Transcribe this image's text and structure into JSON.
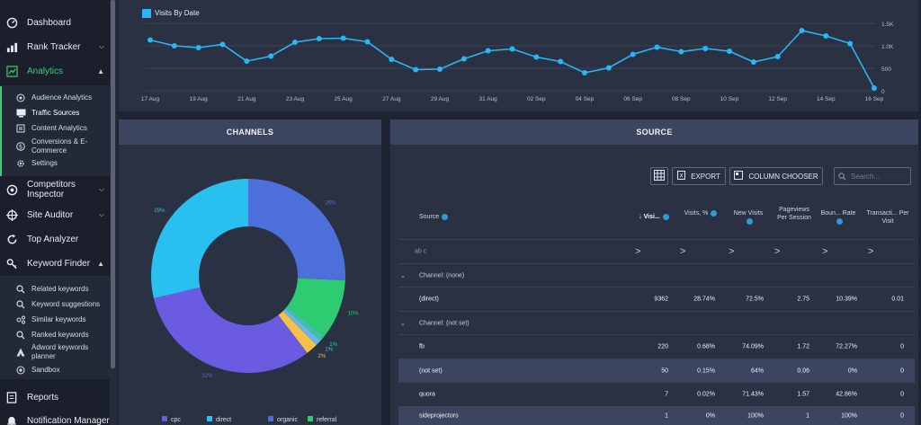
{
  "sidebar": {
    "items": [
      {
        "label": "Dashboard",
        "icon": "gauge-icon"
      },
      {
        "label": "Rank Tracker",
        "icon": "bar-chart-icon"
      },
      {
        "label": "Analytics",
        "icon": "analytics-icon"
      },
      {
        "label": "Competitors Inspector",
        "icon": "target-icon"
      },
      {
        "label": "Site Auditor",
        "icon": "crosshair-icon"
      },
      {
        "label": "Top Analyzer",
        "icon": "refresh-icon"
      },
      {
        "label": "Keyword Finder",
        "icon": "key-icon"
      },
      {
        "label": "Reports",
        "icon": "document-icon"
      },
      {
        "label": "Notification Manager",
        "icon": "bell-icon"
      }
    ],
    "analytics_sub": [
      {
        "label": "Audience Analytics",
        "icon": "audience-icon"
      },
      {
        "label": "Traffic Sources",
        "icon": "monitor-icon"
      },
      {
        "label": "Content Analytics",
        "icon": "content-icon"
      },
      {
        "label": "Conversions & E-Commerce",
        "icon": "dollar-icon"
      },
      {
        "label": "Settings",
        "icon": "gear-icon"
      }
    ],
    "keyword_sub": [
      {
        "label": "Related keywords",
        "icon": "search-icon"
      },
      {
        "label": "Keyword suggestions",
        "icon": "search-icon"
      },
      {
        "label": "Similar keywords",
        "icon": "similar-icon"
      },
      {
        "label": "Ranked keywords",
        "icon": "search-icon"
      },
      {
        "label": "Adword keywords planner",
        "icon": "adwords-icon"
      },
      {
        "label": "Sandbox",
        "icon": "sandbox-icon"
      }
    ]
  },
  "chart_data": [
    {
      "type": "line",
      "legend": "Visits By Date",
      "x_ticks": [
        "17 Aug",
        "19 Aug",
        "21 Aug",
        "23 Aug",
        "25 Aug",
        "27 Aug",
        "29 Aug",
        "31 Aug",
        "02 Sep",
        "04 Sep",
        "06 Sep",
        "08 Sep",
        "10 Sep",
        "12 Sep",
        "14 Sep",
        "16 Sep"
      ],
      "y_ticks": [
        "1.5K",
        "1.0K",
        "500",
        "0"
      ],
      "ylim": [
        0,
        1500
      ],
      "series": [
        {
          "name": "Visits By Date",
          "color": "#29b6f6",
          "values": [
            1130,
            1000,
            960,
            1030,
            660,
            770,
            1080,
            1160,
            1170,
            1090,
            700,
            470,
            480,
            710,
            890,
            930,
            750,
            650,
            400,
            510,
            810,
            970,
            870,
            940,
            880,
            640,
            760,
            1340,
            1220,
            1050,
            60
          ]
        }
      ]
    },
    {
      "type": "pie",
      "title": "CHANNELS",
      "slices": [
        {
          "name": "organic",
          "value": 26,
          "label": "26%",
          "color": "#4d6fd9"
        },
        {
          "name": "referral",
          "value": 10,
          "label": "10%",
          "color": "#2ecc71"
        },
        {
          "name": "",
          "value": 1,
          "label": "1%",
          "color": "#3dc2a8"
        },
        {
          "name": "",
          "value": 1,
          "label": "1%",
          "color": "#6bb6e8"
        },
        {
          "name": "",
          "value": 2,
          "label": "2%",
          "color": "#f5c04a"
        },
        {
          "name": "cpc",
          "value": 32,
          "label": "32%",
          "color": "#6a5be0"
        },
        {
          "name": "direct",
          "value": 29,
          "label": "29%",
          "color": "#29c0f0"
        }
      ],
      "legend": [
        "cpc",
        "direct",
        "organic",
        "referral"
      ]
    }
  ],
  "channels": {
    "title": "CHANNELS"
  },
  "source": {
    "title": "SOURCE",
    "export_label": "EXPORT",
    "chooser_label": "COLUMN CHOOSER",
    "search_placeholder": "Search...",
    "columns": [
      "Source",
      "↓ Visi...",
      "Visits, %",
      "New Visits",
      "Pageviews Per Session",
      "Boun... Rate",
      "Transacti... Per Visit"
    ],
    "filter_symbol": "ab c",
    "filter_arrow": ">",
    "groups": [
      {
        "label": "Channel: (none)",
        "rows": [
          {
            "cells": [
              "(direct)",
              "9362",
              "28.74%",
              "72.5%",
              "2.75",
              "10.39%",
              "0.01"
            ]
          }
        ]
      },
      {
        "label": "Channel: (not set)",
        "rows": [
          {
            "cells": [
              "fb",
              "220",
              "0.68%",
              "74.09%",
              "1.72",
              "72.27%",
              "0"
            ]
          },
          {
            "cells": [
              "(not set)",
              "50",
              "0.15%",
              "64%",
              "0.06",
              "0%",
              "0"
            ]
          },
          {
            "cells": [
              "quora",
              "7",
              "0.02%",
              "71.43%",
              "1.57",
              "42.86%",
              "0"
            ]
          },
          {
            "cells": [
              "sideprojectors",
              "1",
              "0%",
              "100%",
              "1",
              "100%",
              "0"
            ]
          }
        ]
      }
    ]
  }
}
